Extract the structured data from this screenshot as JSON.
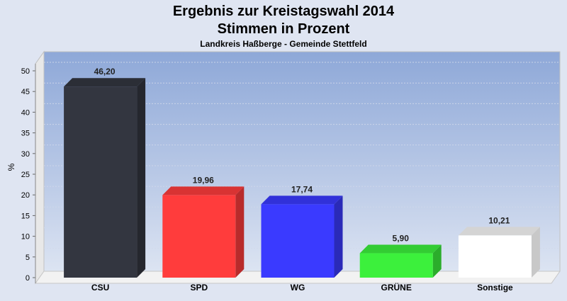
{
  "chart_data": {
    "type": "bar",
    "title": "Ergebnis zur Kreistagswahl 2014",
    "subtitle": "Stimmen in Prozent",
    "caption": "Landkreis Haßberge - Gemeinde Stettfeld",
    "ylabel": "%",
    "xlabel": "",
    "ylim": [
      0,
      50
    ],
    "yticks": [
      "0",
      "5",
      "10",
      "15",
      "20",
      "25",
      "30",
      "35",
      "40",
      "45",
      "50"
    ],
    "categories": [
      "CSU",
      "SPD",
      "WG",
      "GRÜNE",
      "Sonstige"
    ],
    "values": [
      46.2,
      19.96,
      17.74,
      5.9,
      10.21
    ],
    "value_labels": [
      "46,20",
      "19,96",
      "17,74",
      "5,90",
      "10,21"
    ],
    "colors": [
      "#333640",
      "#ff3c3c",
      "#3a3aff",
      "#3cf03c",
      "#ffffff"
    ],
    "grid": true,
    "legend": "none"
  }
}
